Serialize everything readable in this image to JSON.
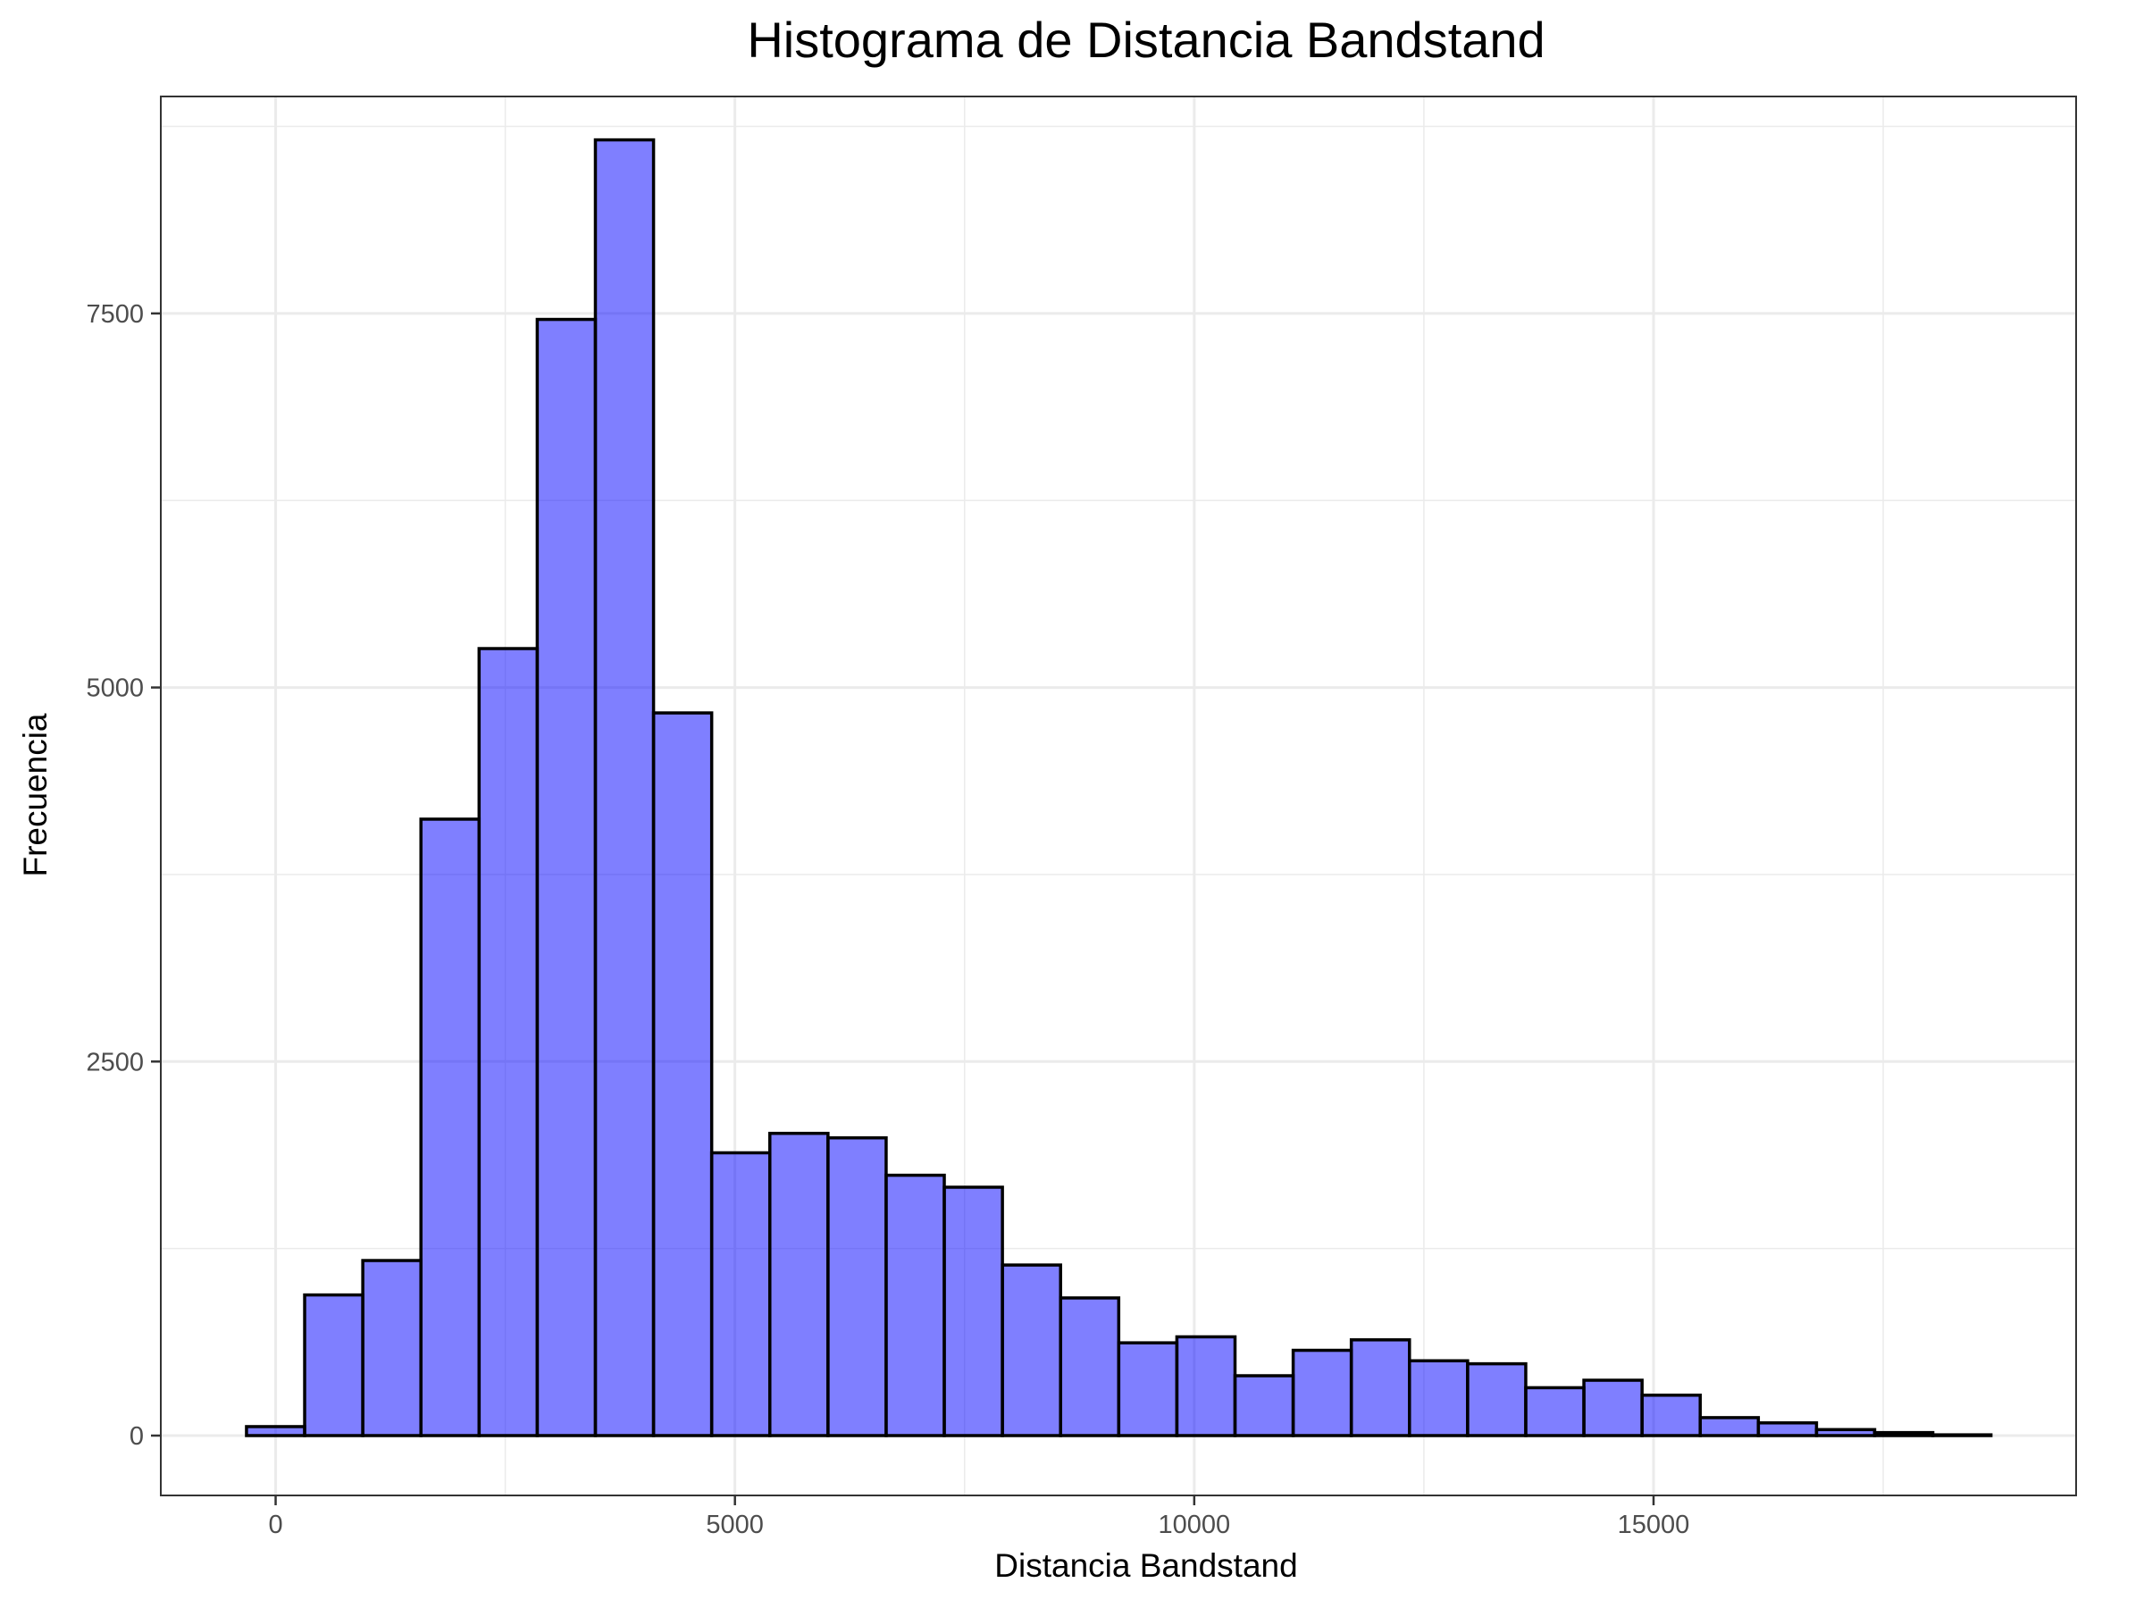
{
  "chart_data": {
    "type": "bar",
    "subtype": "histogram",
    "title": "Histograma de Distancia Bandstand",
    "xlabel": "Distancia Bandstand",
    "ylabel": "Frecuencia",
    "bin_width": 633,
    "bins": [
      {
        "x0": -317,
        "x1": 316,
        "count": 60
      },
      {
        "x0": 316,
        "x1": 949,
        "count": 940
      },
      {
        "x0": 949,
        "x1": 1582,
        "count": 1170
      },
      {
        "x0": 1582,
        "x1": 2215,
        "count": 4120
      },
      {
        "x0": 2215,
        "x1": 2848,
        "count": 5260
      },
      {
        "x0": 2848,
        "x1": 3481,
        "count": 7460
      },
      {
        "x0": 3481,
        "x1": 4114,
        "count": 8660
      },
      {
        "x0": 4114,
        "x1": 4747,
        "count": 4830
      },
      {
        "x0": 4747,
        "x1": 5380,
        "count": 1890
      },
      {
        "x0": 5380,
        "x1": 6013,
        "count": 2020
      },
      {
        "x0": 6013,
        "x1": 6646,
        "count": 1990
      },
      {
        "x0": 6646,
        "x1": 7279,
        "count": 1740
      },
      {
        "x0": 7279,
        "x1": 7912,
        "count": 1660
      },
      {
        "x0": 7912,
        "x1": 8545,
        "count": 1140
      },
      {
        "x0": 8545,
        "x1": 9178,
        "count": 920
      },
      {
        "x0": 9178,
        "x1": 9811,
        "count": 620
      },
      {
        "x0": 9811,
        "x1": 10444,
        "count": 660
      },
      {
        "x0": 10444,
        "x1": 11077,
        "count": 400
      },
      {
        "x0": 11077,
        "x1": 11710,
        "count": 570
      },
      {
        "x0": 11710,
        "x1": 12343,
        "count": 640
      },
      {
        "x0": 12343,
        "x1": 12976,
        "count": 500
      },
      {
        "x0": 12976,
        "x1": 13609,
        "count": 480
      },
      {
        "x0": 13609,
        "x1": 14242,
        "count": 320
      },
      {
        "x0": 14242,
        "x1": 14875,
        "count": 370
      },
      {
        "x0": 14875,
        "x1": 15508,
        "count": 270
      },
      {
        "x0": 15508,
        "x1": 16141,
        "count": 120
      },
      {
        "x0": 16141,
        "x1": 16774,
        "count": 85
      },
      {
        "x0": 16774,
        "x1": 17407,
        "count": 40
      },
      {
        "x0": 17407,
        "x1": 18040,
        "count": 20
      },
      {
        "x0": 18040,
        "x1": 18673,
        "count": 5
      }
    ],
    "xlim": [
      -1250,
      19600
    ],
    "ylim": [
      -400,
      8950
    ],
    "x_ticks": [
      0,
      5000,
      10000,
      15000
    ],
    "x_tick_labels": [
      "0",
      "5000",
      "10000",
      "15000"
    ],
    "x_minor_ticks": [
      2500,
      7500,
      12500,
      17500
    ],
    "y_ticks": [
      0,
      2500,
      5000,
      7500
    ],
    "y_tick_labels": [
      "0",
      "2500",
      "5000",
      "7500"
    ],
    "y_minor_ticks": [
      1250,
      3750,
      6250,
      8750
    ],
    "grid": true,
    "legend": "none",
    "colors": {
      "bar_fill": "#0000ff",
      "bar_fill_opacity": 0.5,
      "bar_outline": "#000000"
    }
  }
}
